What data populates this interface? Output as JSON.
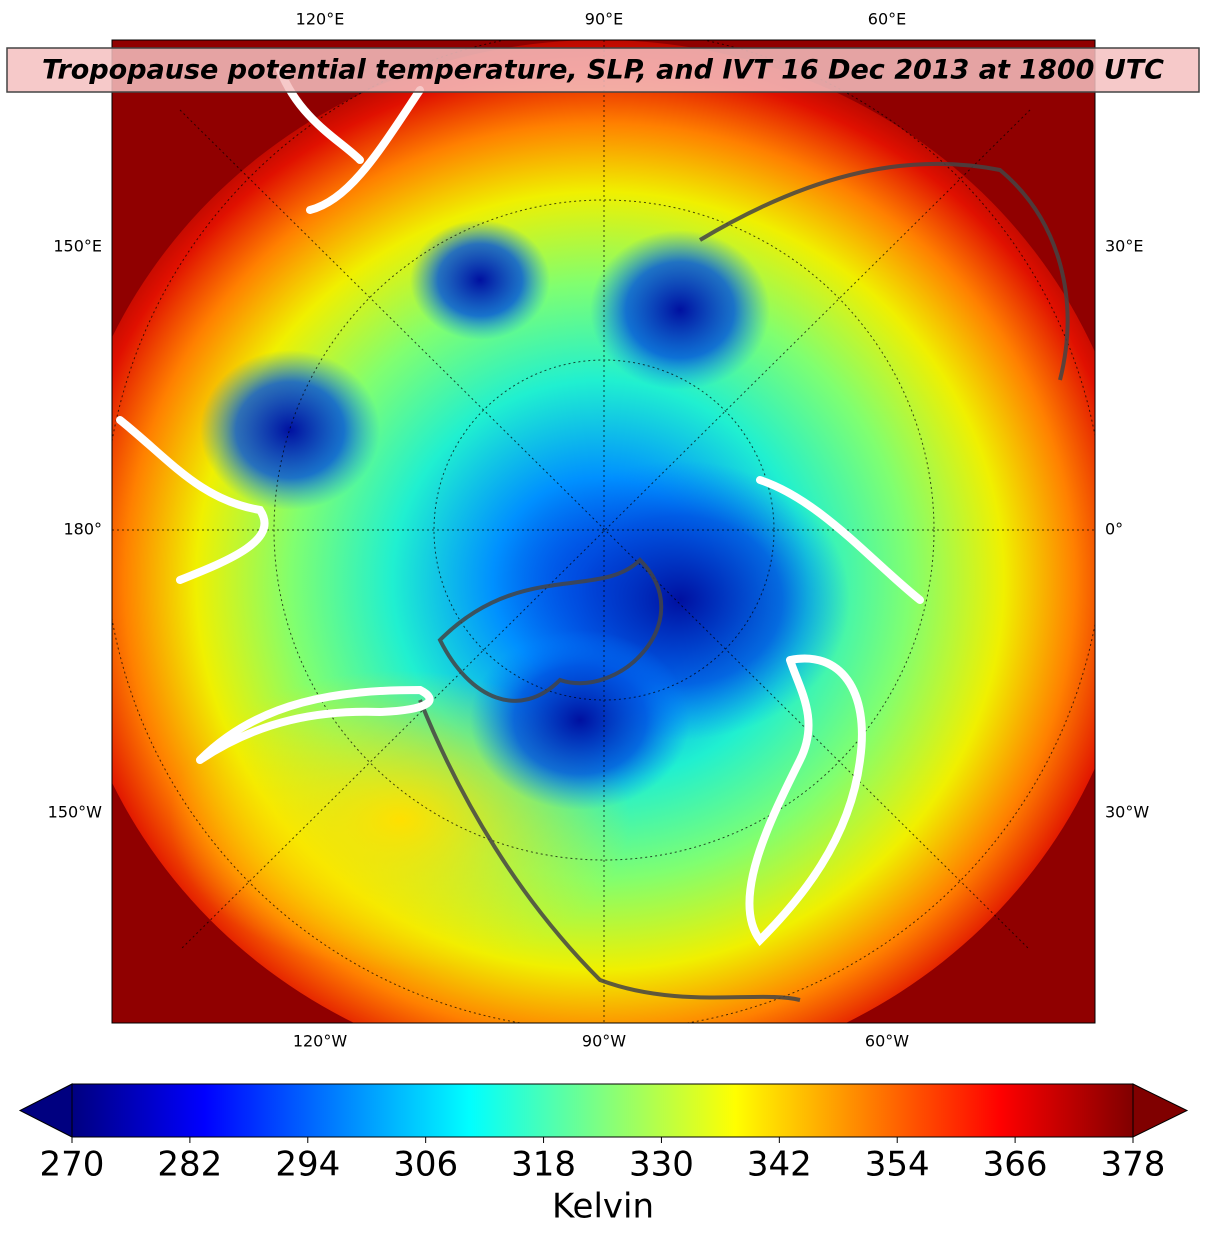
{
  "title": "Tropopause potential temperature, SLP, and IVT 16 Dec 2013 at 1800 UTC",
  "map": {
    "top_labels": [
      "120°E",
      "90°E",
      "60°E"
    ],
    "bottom_labels": [
      "120°W",
      "90°W",
      "60°W"
    ],
    "left_labels": [
      "150°E",
      "180°",
      "150°W"
    ],
    "right_labels": [
      "30°E",
      "0°",
      "30°W"
    ]
  },
  "colorbar": {
    "label": "Kelvin",
    "colormap": "jet",
    "lim": [
      270,
      378
    ],
    "ticks": [
      270,
      282,
      294,
      306,
      318,
      330,
      342,
      354,
      366,
      378
    ],
    "extend": "both"
  }
}
